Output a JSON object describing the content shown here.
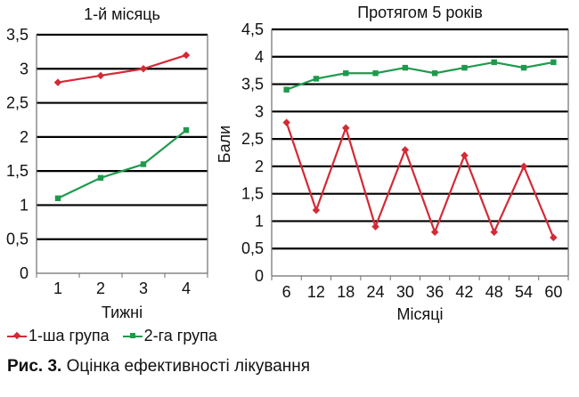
{
  "chart_data": [
    {
      "type": "line",
      "title": "1-й місяць",
      "xlabel": "Тижні",
      "ylabel": "",
      "categories": [
        "1",
        "2",
        "3",
        "4"
      ],
      "ylim": [
        0,
        3.5
      ],
      "yticks": [
        "0",
        "0,5",
        "1",
        "1,5",
        "2",
        "2,5",
        "3",
        "3,5"
      ],
      "grid": "horizontal",
      "series": [
        {
          "name": "1-ша група",
          "values": [
            2.8,
            2.9,
            3.0,
            3.2
          ]
        },
        {
          "name": "2-га група",
          "values": [
            1.1,
            1.4,
            1.6,
            2.1
          ]
        }
      ]
    },
    {
      "type": "line",
      "title": "Протягом 5 років",
      "xlabel": "Місяці",
      "ylabel": "Бали",
      "categories": [
        "6",
        "12",
        "18",
        "24",
        "30",
        "36",
        "42",
        "48",
        "54",
        "60"
      ],
      "ylim": [
        0,
        4.5
      ],
      "yticks": [
        "0",
        "0,5",
        "1",
        "1,5",
        "2",
        "2,5",
        "3",
        "3,5",
        "4",
        "4,5"
      ],
      "grid": "horizontal",
      "series": [
        {
          "name": "1-ша група",
          "values": [
            2.8,
            1.2,
            2.7,
            0.9,
            2.3,
            0.8,
            2.2,
            0.8,
            2.0,
            0.7
          ]
        },
        {
          "name": "2-га група",
          "values": [
            3.4,
            3.6,
            3.7,
            3.7,
            3.8,
            3.7,
            3.8,
            3.9,
            3.8,
            3.9
          ]
        }
      ]
    }
  ],
  "colors": {
    "group1": "#d42a36",
    "group2": "#1e9a4c",
    "grid": "#000000",
    "axis": "#6e6e6e"
  },
  "legend": {
    "group1_label": "1-ша група",
    "group2_label": "2-га група",
    "group1_icon": "diamond-marker-icon",
    "group2_icon": "square-marker-icon"
  },
  "caption": {
    "label": "Рис. 3.",
    "text": " Оцінка ефективності лікування"
  }
}
